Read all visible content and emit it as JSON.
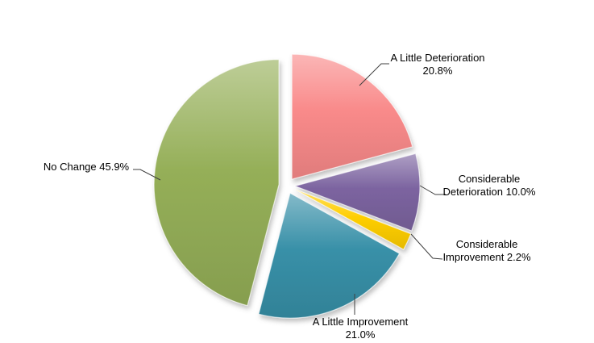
{
  "chart_data": {
    "type": "pie",
    "title": "",
    "direction": "clockwise",
    "start_angle_deg": 0,
    "explode": true,
    "background": "#FFFFFF",
    "leader_line_color": "#3F3F3F",
    "label_color": "#000000",
    "slices": [
      {
        "label": "A Little Deterioration",
        "value": 20.8,
        "display": "20.8%",
        "color": "#F98A8A",
        "label_lines": [
          "A Little Deterioration",
          "20.8%"
        ]
      },
      {
        "label": "Considerable Deterioration",
        "value": 10.0,
        "display": "10.0%",
        "color": "#7C64A0",
        "label_lines": [
          "Considerable",
          "Deterioration 10.0%"
        ]
      },
      {
        "label": "Considerable Improvement",
        "value": 2.2,
        "display": "2.2%",
        "color": "#FFCF05",
        "label_lines": [
          "Considerable",
          "Improvement 2.2%"
        ]
      },
      {
        "label": "A Little Improvement",
        "value": 21.0,
        "display": "21.0%",
        "color": "#3890A8",
        "label_lines": [
          "A Little Improvement",
          "21.0%"
        ]
      },
      {
        "label": "No Change",
        "value": 45.9,
        "display": "45.9%",
        "color": "#95AF58",
        "label_lines": [
          "No Change 45.9%"
        ]
      }
    ]
  }
}
